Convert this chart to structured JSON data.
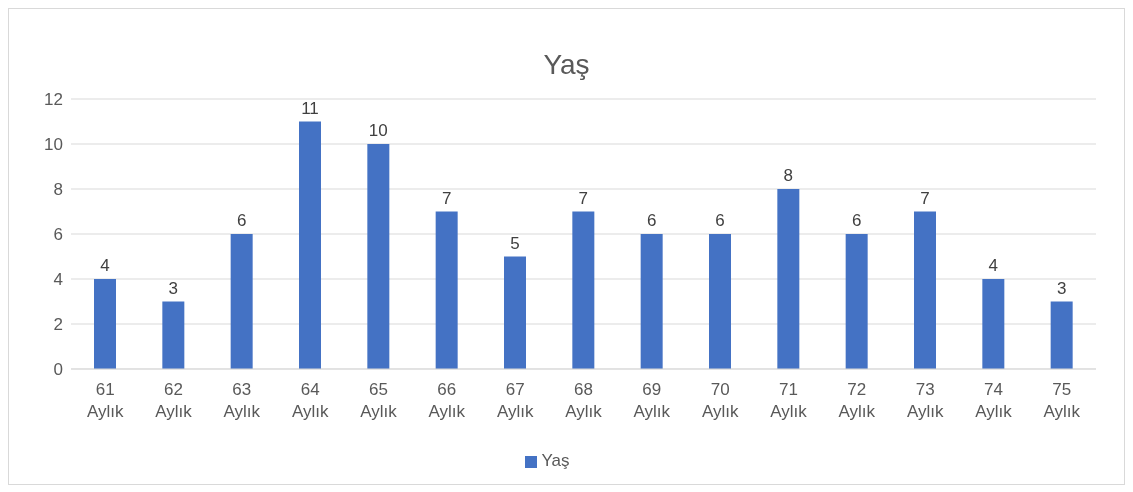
{
  "chart_data": {
    "type": "bar",
    "title": "Yaş",
    "categories": [
      "61 Aylık",
      "62 Aylık",
      "63 Aylık",
      "64 Aylık",
      "65 Aylık",
      "66 Aylık",
      "67 Aylık",
      "68 Aylık",
      "69 Aylık",
      "70 Aylık",
      "71 Aylık",
      "72 Aylık",
      "73 Aylık",
      "74 Aylık",
      "75 Aylık"
    ],
    "series": [
      {
        "name": "Yaş",
        "color": "#4472c4",
        "values": [
          4,
          3,
          6,
          11,
          10,
          7,
          5,
          7,
          6,
          6,
          8,
          6,
          7,
          4,
          3
        ]
      }
    ],
    "ylim": [
      0,
      12
    ],
    "yticks": [
      0,
      2,
      4,
      6,
      8,
      10,
      12
    ],
    "grid": "y",
    "legend": "bottom",
    "data_labels": true
  }
}
